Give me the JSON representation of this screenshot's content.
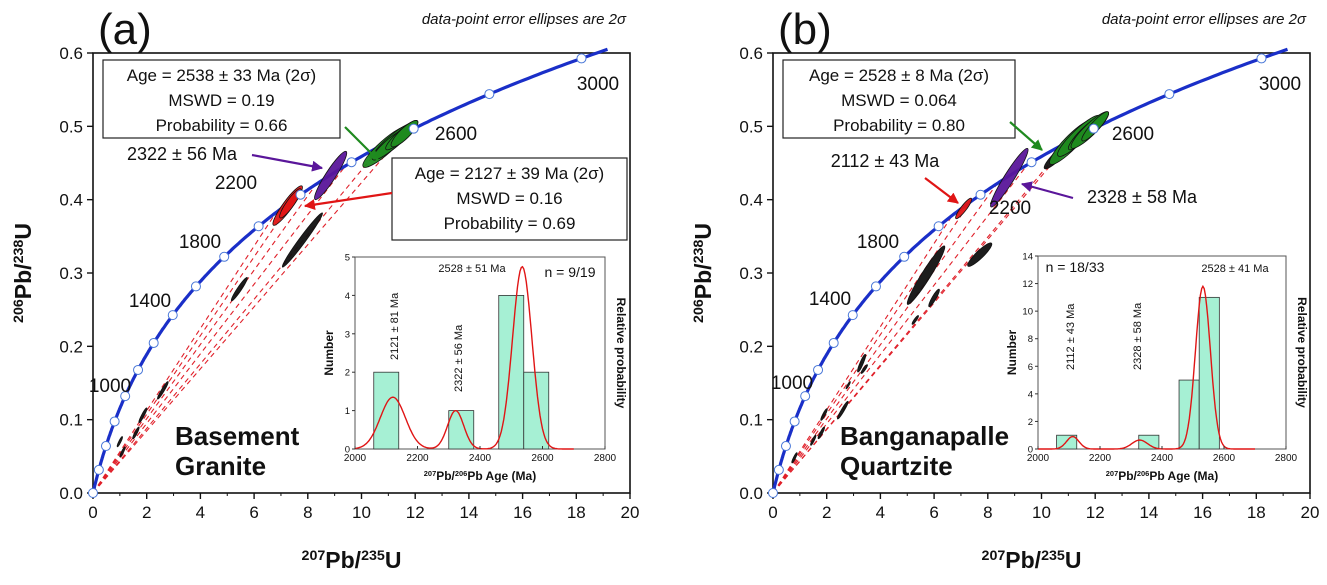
{
  "colors": {
    "concordia": "#1a2fc8",
    "concordia_marker": "#ffffff",
    "discordia": "#e0202a",
    "green": "#1f8a1f",
    "purple": "#5a169a",
    "red": "#e01515",
    "black": "#111111",
    "histogram_bar": "#a6f0d4",
    "pdp_curve": "#e01515",
    "sample_label": "#17179a"
  },
  "chart_data": [
    {
      "type": "scatter",
      "panel_label": "(a)",
      "note": "data-point error ellipses are 2σ",
      "xlabel": [
        "207",
        "Pb/",
        "235",
        "U"
      ],
      "ylabel": [
        "206",
        "Pb/",
        "238",
        "U"
      ],
      "xlim": [
        0,
        20
      ],
      "ylim": [
        0,
        0.6
      ],
      "xticks": [
        "0",
        "2",
        "4",
        "6",
        "8",
        "10",
        "12",
        "14",
        "16",
        "18",
        "20"
      ],
      "yticks": [
        "0.0",
        "0.1",
        "0.2",
        "0.3",
        "0.4",
        "0.5",
        "0.6"
      ],
      "concordia_age_labels": [
        "1000",
        "1400",
        "1800",
        "2200",
        "2600",
        "3000"
      ],
      "concordia_marker_step_ma": 200,
      "sample_name": [
        "Basement",
        "Granite"
      ],
      "results": [
        {
          "lines": [
            "Age = 2538 ± 33 Ma (2σ)",
            "MSWD = 0.19",
            "Probability = 0.66"
          ],
          "color": "green"
        },
        {
          "lines": [
            "Age = 2127 ± 39 Ma (2σ)",
            "MSWD = 0.16",
            "Probability = 0.69"
          ],
          "color": "red"
        }
      ],
      "callouts": [
        {
          "text": "2322 ± 56 Ma",
          "color": "purple"
        }
      ],
      "discordia_upper_intercepts_ma": [
        [
          2127,
          39
        ],
        [
          2322,
          56
        ],
        [
          2538,
          33
        ]
      ],
      "ellipses": [
        {
          "group": "black",
          "x": 7.8,
          "y": 0.345,
          "sx": 0.75,
          "sy": 0.037,
          "rho": 0.98
        },
        {
          "group": "black",
          "x": 5.45,
          "y": 0.278,
          "sx": 0.3,
          "sy": 0.016,
          "rho": 0.95
        },
        {
          "group": "black",
          "x": 2.6,
          "y": 0.14,
          "sx": 0.2,
          "sy": 0.012,
          "rho": 0.95
        },
        {
          "group": "black",
          "x": 1.86,
          "y": 0.106,
          "sx": 0.15,
          "sy": 0.01,
          "rho": 0.93
        },
        {
          "group": "black",
          "x": 1.6,
          "y": 0.082,
          "sx": 0.12,
          "sy": 0.008,
          "rho": 0.9
        },
        {
          "group": "black",
          "x": 1.0,
          "y": 0.07,
          "sx": 0.1,
          "sy": 0.007,
          "rho": 0.9
        },
        {
          "group": "black",
          "x": 1.1,
          "y": 0.056,
          "sx": 0.1,
          "sy": 0.007,
          "rho": 0.9
        },
        {
          "group": "red",
          "x": 7.25,
          "y": 0.392,
          "sx": 0.55,
          "sy": 0.027,
          "rho": 0.92
        },
        {
          "group": "red",
          "x": 7.35,
          "y": 0.395,
          "sx": 0.4,
          "sy": 0.02,
          "rho": 0.9
        },
        {
          "group": "purple",
          "x": 8.85,
          "y": 0.433,
          "sx": 0.6,
          "sy": 0.033,
          "rho": 0.93
        },
        {
          "group": "green",
          "x": 10.9,
          "y": 0.472,
          "sx": 0.85,
          "sy": 0.028,
          "rho": 0.9
        },
        {
          "group": "green",
          "x": 11.2,
          "y": 0.48,
          "sx": 0.8,
          "sy": 0.025,
          "rho": 0.9
        },
        {
          "group": "green",
          "x": 11.1,
          "y": 0.476,
          "sx": 0.7,
          "sy": 0.022,
          "rho": 0.9
        },
        {
          "group": "green",
          "x": 11.5,
          "y": 0.488,
          "sx": 0.6,
          "sy": 0.02,
          "rho": 0.9
        },
        {
          "group": "green",
          "x": 11.6,
          "y": 0.49,
          "sx": 0.5,
          "sy": 0.018,
          "rho": 0.85
        }
      ],
      "inset": {
        "type": "bar",
        "xlabel": [
          "207",
          "Pb/",
          "206",
          "Pb Age (Ma)"
        ],
        "ylabel": "Number",
        "y2label": "Relative probability",
        "xlim": [
          2000,
          2800
        ],
        "ylim": [
          0,
          5
        ],
        "xticks": [
          "2000",
          "2200",
          "2400",
          "2600",
          "2800"
        ],
        "yticks": [
          "0",
          "1",
          "2",
          "3",
          "4",
          "5"
        ],
        "n_label": "n = 9/19",
        "bins": [
          [
            2060,
            2140,
            2
          ],
          [
            2300,
            2380,
            1
          ],
          [
            2460,
            2540,
            4
          ],
          [
            2540,
            2620,
            2
          ]
        ],
        "pdp_peaks": [
          {
            "age": 2121,
            "height": 1.35,
            "sigma": 40
          },
          {
            "age": 2322,
            "height": 1.0,
            "sigma": 26
          },
          {
            "age": 2535,
            "height": 4.75,
            "sigma": 31
          }
        ],
        "peak_labels": [
          {
            "text": "2121 ± 81 Ma",
            "rotated": true
          },
          {
            "text": "2322 ± 56 Ma",
            "rotated": true
          },
          {
            "text": "2528 ± 51 Ma",
            "rotated": false
          }
        ]
      }
    },
    {
      "type": "scatter",
      "panel_label": "(b)",
      "note": "data-point error ellipses are 2σ",
      "xlabel": [
        "207",
        "Pb/",
        "235",
        "U"
      ],
      "ylabel": [
        "206",
        "Pb/",
        "238",
        "U"
      ],
      "xlim": [
        0,
        20
      ],
      "ylim": [
        0,
        0.6
      ],
      "xticks": [
        "0",
        "2",
        "4",
        "6",
        "8",
        "10",
        "12",
        "14",
        "16",
        "18",
        "20"
      ],
      "yticks": [
        "0.0",
        "0.1",
        "0.2",
        "0.3",
        "0.4",
        "0.5",
        "0.6"
      ],
      "concordia_age_labels": [
        "1000",
        "1400",
        "1800",
        "2200",
        "2600",
        "3000"
      ],
      "concordia_marker_step_ma": 200,
      "sample_name": [
        "Banganapalle",
        "Quartzite"
      ],
      "results": [
        {
          "lines": [
            "Age = 2528 ± 8 Ma (2σ)",
            "MSWD = 0.064",
            "Probability = 0.80"
          ],
          "color": "green"
        }
      ],
      "callouts": [
        {
          "text": "2112 ± 43 Ma",
          "color": "red"
        },
        {
          "text": "2328 ± 58 Ma",
          "color": "purple"
        }
      ],
      "discordia_upper_intercepts_ma": [
        [
          2112,
          43
        ],
        [
          2328,
          58
        ],
        [
          2528,
          8
        ]
      ],
      "ellipses": [
        {
          "group": "black",
          "x": 5.7,
          "y": 0.297,
          "sx": 0.7,
          "sy": 0.04,
          "rho": 0.96
        },
        {
          "group": "black",
          "x": 7.7,
          "y": 0.325,
          "sx": 0.45,
          "sy": 0.016,
          "rho": 0.9
        },
        {
          "group": "black",
          "x": 6.0,
          "y": 0.266,
          "sx": 0.2,
          "sy": 0.012,
          "rho": 0.9
        },
        {
          "group": "black",
          "x": 5.3,
          "y": 0.236,
          "sx": 0.12,
          "sy": 0.006,
          "rho": 0.9
        },
        {
          "group": "black",
          "x": 3.3,
          "y": 0.177,
          "sx": 0.15,
          "sy": 0.012,
          "rho": 0.9
        },
        {
          "group": "black",
          "x": 3.4,
          "y": 0.169,
          "sx": 0.12,
          "sy": 0.006,
          "rho": 0.9
        },
        {
          "group": "black",
          "x": 2.8,
          "y": 0.147,
          "sx": 0.08,
          "sy": 0.005,
          "rho": 0.9
        },
        {
          "group": "black",
          "x": 2.6,
          "y": 0.113,
          "sx": 0.2,
          "sy": 0.012,
          "rho": 0.95
        },
        {
          "group": "black",
          "x": 1.9,
          "y": 0.107,
          "sx": 0.12,
          "sy": 0.008,
          "rho": 0.9
        },
        {
          "group": "black",
          "x": 1.8,
          "y": 0.082,
          "sx": 0.12,
          "sy": 0.008,
          "rho": 0.9
        },
        {
          "group": "black",
          "x": 1.5,
          "y": 0.072,
          "sx": 0.1,
          "sy": 0.007,
          "rho": 0.9
        },
        {
          "group": "black",
          "x": 0.8,
          "y": 0.048,
          "sx": 0.1,
          "sy": 0.007,
          "rho": 0.9
        },
        {
          "group": "black",
          "x": 10.6,
          "y": 0.46,
          "sx": 0.5,
          "sy": 0.018,
          "rho": 0.9
        },
        {
          "group": "red",
          "x": 7.1,
          "y": 0.388,
          "sx": 0.3,
          "sy": 0.014,
          "rho": 0.9
        },
        {
          "group": "purple",
          "x": 8.8,
          "y": 0.43,
          "sx": 0.7,
          "sy": 0.04,
          "rho": 0.95
        },
        {
          "group": "green",
          "x": 11.1,
          "y": 0.478,
          "sx": 0.8,
          "sy": 0.03,
          "rho": 0.9
        },
        {
          "group": "green",
          "x": 11.4,
          "y": 0.487,
          "sx": 0.8,
          "sy": 0.028,
          "rho": 0.9
        },
        {
          "group": "green",
          "x": 11.6,
          "y": 0.49,
          "sx": 0.6,
          "sy": 0.022,
          "rho": 0.9
        },
        {
          "group": "green",
          "x": 11.8,
          "y": 0.495,
          "sx": 0.7,
          "sy": 0.025,
          "rho": 0.9
        },
        {
          "group": "green",
          "x": 12.0,
          "y": 0.5,
          "sx": 0.5,
          "sy": 0.02,
          "rho": 0.9
        }
      ],
      "inset": {
        "type": "bar",
        "xlabel": [
          "207",
          "Pb/",
          "206",
          "Pb Age (Ma)"
        ],
        "ylabel": "Number",
        "y2label": "Relative probability",
        "xlim": [
          2000,
          2800
        ],
        "ylim": [
          0,
          14
        ],
        "xticks": [
          "2000",
          "2200",
          "2400",
          "2600",
          "2800"
        ],
        "yticks": [
          "0",
          "2",
          "4",
          "6",
          "8",
          "10",
          "12",
          "14"
        ],
        "n_label": "n = 18/33",
        "bins": [
          [
            2060,
            2125,
            1
          ],
          [
            2325,
            2390,
            1
          ],
          [
            2455,
            2520,
            5
          ],
          [
            2520,
            2585,
            11
          ]
        ],
        "pdp_peaks": [
          {
            "age": 2112,
            "height": 0.9,
            "sigma": 20
          },
          {
            "age": 2328,
            "height": 0.65,
            "sigma": 25
          },
          {
            "age": 2532,
            "height": 11.8,
            "sigma": 24
          }
        ],
        "peak_labels": [
          {
            "text": "2112 ± 43 Ma",
            "rotated": true
          },
          {
            "text": "2328 ± 58 Ma",
            "rotated": true
          },
          {
            "text": "2528 ± 41 Ma",
            "rotated": false
          }
        ]
      }
    }
  ]
}
